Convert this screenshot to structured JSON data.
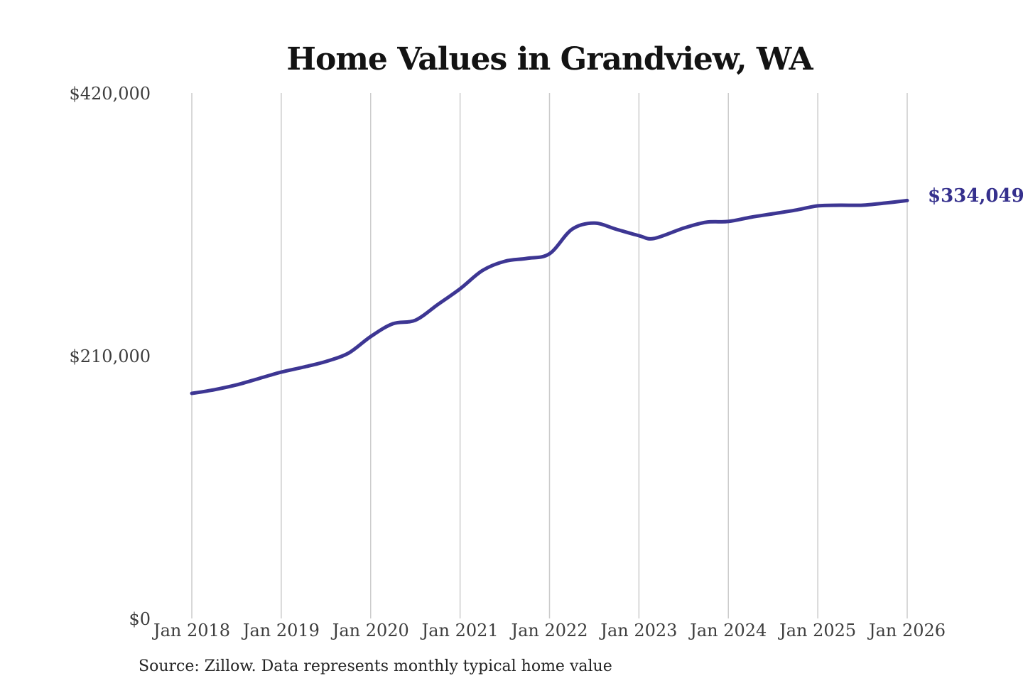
{
  "chart_data": {
    "type": "line",
    "title": "Home Values in Grandview, WA",
    "series_name": "Monthly typical home value",
    "x": [
      "2018-01",
      "2018-04",
      "2018-07",
      "2018-10",
      "2019-01",
      "2019-04",
      "2019-07",
      "2019-10",
      "2020-01",
      "2020-04",
      "2020-07",
      "2020-10",
      "2021-01",
      "2021-04",
      "2021-07",
      "2021-10",
      "2022-01",
      "2022-04",
      "2022-07",
      "2022-10",
      "2023-01",
      "2023-03",
      "2023-07",
      "2023-10",
      "2024-01",
      "2024-04",
      "2024-07",
      "2024-10",
      "2025-01",
      "2025-04",
      "2025-07",
      "2025-10",
      "2026-01"
    ],
    "values": [
      179900,
      182800,
      186700,
      191800,
      196900,
      200900,
      205400,
      212000,
      225300,
      235600,
      238400,
      250900,
      263500,
      278100,
      285500,
      287800,
      291500,
      311000,
      316100,
      311000,
      306000,
      303700,
      312000,
      316700,
      317300,
      320700,
      323500,
      326400,
      329800,
      330300,
      330300,
      332000,
      334049
    ],
    "latest_value": 334049,
    "end_label": "$334,049",
    "x_ticks": [
      "Jan 2018",
      "Jan 2019",
      "Jan 2020",
      "Jan 2021",
      "Jan 2022",
      "Jan 2023",
      "Jan 2024",
      "Jan 2025",
      "Jan 2026"
    ],
    "y_ticks": [
      {
        "label": "$420,000",
        "value": 420000
      },
      {
        "label": "$210,000",
        "value": 210000
      },
      {
        "label": "$0",
        "value": 0
      }
    ],
    "ylim": [
      0,
      420000
    ],
    "grid": "vertical-only",
    "legend": "none",
    "colors": {
      "line": "#3d3693",
      "end_label": "#35308d",
      "gridline": "#cccccc",
      "axis_text": "#3e3e3e",
      "title_text": "#131313"
    }
  },
  "footer": {
    "source": "Source: Zillow. Data represents monthly typical home value"
  }
}
